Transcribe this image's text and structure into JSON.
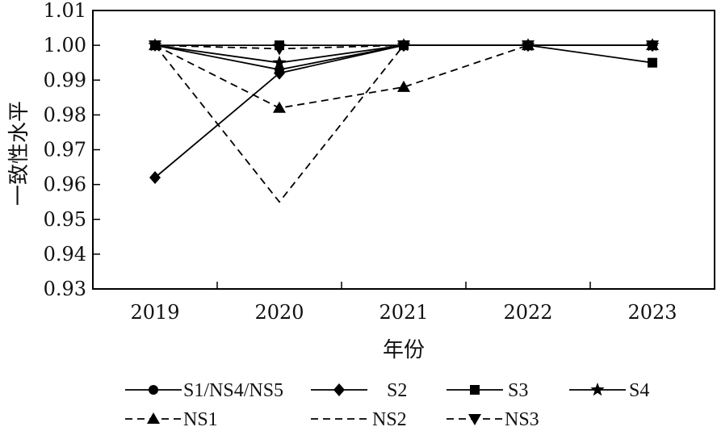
{
  "chart_data": {
    "type": "line",
    "xlabel": "年份",
    "ylabel": "一致性水平",
    "x": [
      "2019",
      "2020",
      "2021",
      "2022",
      "2023"
    ],
    "ylim": [
      0.93,
      1.01
    ],
    "yticks": [
      "0.93",
      "0.94",
      "0.95",
      "0.96",
      "0.97",
      "0.98",
      "0.99",
      "1.00",
      "1.01"
    ],
    "legend_position": "bottom",
    "series": [
      {
        "name": "S1/NS4/NS5",
        "values": [
          1.0,
          0.993,
          1.0,
          1.0,
          1.0
        ],
        "marker": "circle",
        "dash": "solid"
      },
      {
        "name": "S2",
        "values": [
          0.962,
          0.992,
          1.0,
          1.0,
          1.0
        ],
        "marker": "diamond",
        "dash": "solid"
      },
      {
        "name": "S3",
        "values": [
          1.0,
          1.0,
          1.0,
          1.0,
          0.995
        ],
        "marker": "square",
        "dash": "solid"
      },
      {
        "name": "S4",
        "values": [
          1.0,
          0.995,
          1.0,
          1.0,
          1.0
        ],
        "marker": "star",
        "dash": "solid"
      },
      {
        "name": "NS1",
        "values": [
          1.0,
          0.982,
          0.988,
          1.0,
          1.0
        ],
        "marker": "triangle-up",
        "dash": "dashed"
      },
      {
        "name": "NS2",
        "values": [
          1.0,
          0.955,
          1.0,
          1.0,
          1.0
        ],
        "marker": "none",
        "dash": "dashed"
      },
      {
        "name": "NS3",
        "values": [
          1.0,
          0.999,
          1.0,
          1.0,
          1.0
        ],
        "marker": "triangle-down",
        "dash": "dashed"
      }
    ]
  }
}
